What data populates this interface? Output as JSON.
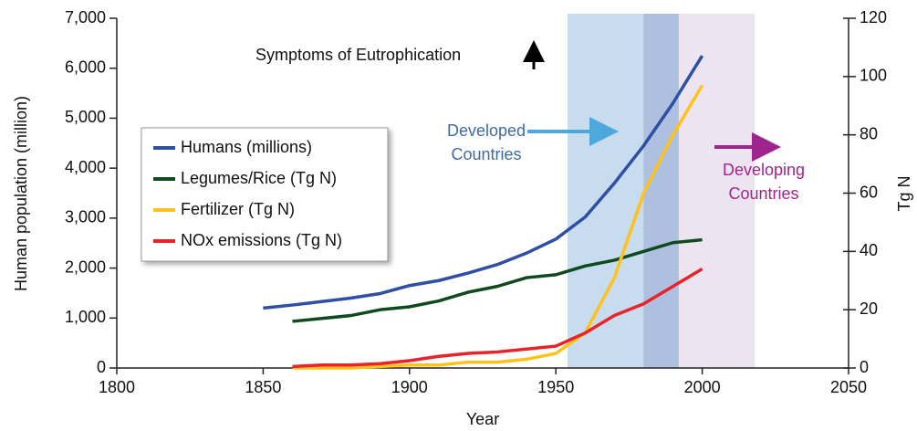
{
  "chart_data": {
    "type": "line",
    "x": [
      1850,
      1860,
      1870,
      1880,
      1890,
      1900,
      1910,
      1920,
      1930,
      1940,
      1950,
      1960,
      1970,
      1980,
      1990,
      2000
    ],
    "series": [
      {
        "name": "Humans (millions)",
        "color": "#2e4fa3",
        "values": [
          1200,
          1260,
          1330,
          1400,
          1490,
          1650,
          1750,
          1900,
          2070,
          2300,
          2580,
          3020,
          3700,
          4450,
          5300,
          6250
        ]
      },
      {
        "name": "Legumes/Rice (Tg N)",
        "color": "#0f4a1e",
        "axis": "y2",
        "values": [
          null,
          16,
          17,
          18,
          20,
          21,
          23,
          26,
          28,
          31,
          32,
          35,
          37,
          40,
          43,
          44
        ]
      },
      {
        "name": "Fertilizer (Tg N)",
        "color": "#ffc21a",
        "axis": "y2",
        "values": [
          null,
          0,
          0,
          0,
          0.5,
          1,
          1,
          2,
          2,
          3,
          5,
          12,
          31,
          60,
          80,
          97
        ]
      },
      {
        "name": "NOx emissions (Tg N)",
        "color": "#e8242b",
        "axis": "y2",
        "values": [
          null,
          0.5,
          1,
          1,
          1.5,
          2.5,
          4,
          5,
          5.5,
          6.5,
          7.5,
          12,
          18,
          22,
          28,
          34
        ]
      }
    ],
    "spans": [
      {
        "x": [
          1954,
          1992
        ],
        "color": "#c7dcee"
      },
      {
        "x": [
          1980,
          1992
        ],
        "color": "#aec0e0"
      },
      {
        "x": [
          1992,
          2018
        ],
        "color": "#ece4f1"
      }
    ],
    "xlabel": "Year",
    "ylabel": "Human population (million)",
    "y2label": "Tg N",
    "xlim": [
      1800,
      2050
    ],
    "xticks": [
      1800,
      1850,
      1900,
      1950,
      2000,
      2050
    ],
    "ylim": [
      0,
      7000
    ],
    "yticks": [
      0,
      {
        "value": 1000,
        "label": "1,000"
      },
      {
        "value": 2000,
        "label": "2,000"
      },
      {
        "value": 3000,
        "label": "3,000"
      },
      {
        "value": 4000,
        "label": "4,000"
      },
      {
        "value": 5000,
        "label": "5,000"
      },
      {
        "value": 6000,
        "label": "6,000"
      },
      {
        "value": 7000,
        "label": "7,000"
      }
    ],
    "y2lim": [
      0,
      120
    ],
    "y2ticks": [
      0,
      20,
      40,
      60,
      80,
      100,
      120
    ],
    "annotations": {
      "eutrophication": "Symptoms of Eutrophication",
      "developed": [
        "Developed",
        "Countries"
      ],
      "developing": [
        "Developing",
        "Countries"
      ]
    },
    "legend": "upper left"
  }
}
